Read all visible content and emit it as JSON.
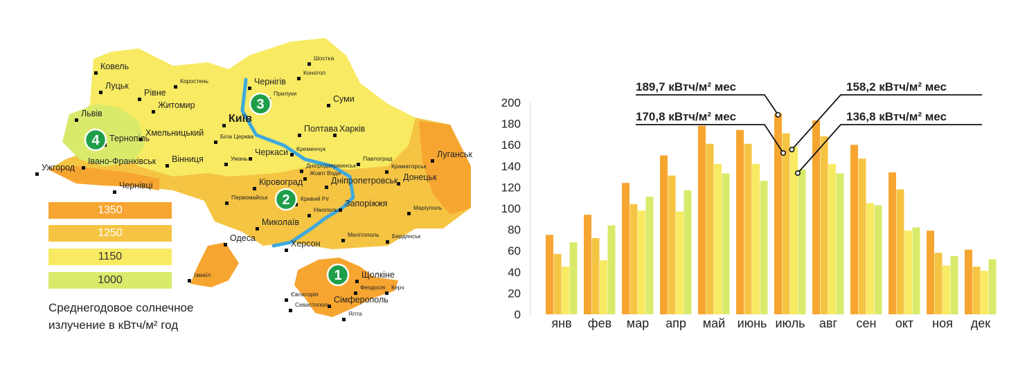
{
  "colors": {
    "c1350": "#f7a531",
    "c1250": "#f5c443",
    "c1150": "#f8ea62",
    "c1000": "#d9ea6b",
    "badge": "#1f9e4a",
    "river": "#3fa9dd"
  },
  "legend": [
    {
      "label": "1350",
      "color": "#f7a531"
    },
    {
      "label": "1250",
      "color": "#f5c443"
    },
    {
      "label": "1150",
      "color": "#f8ea62"
    },
    {
      "label": "1000",
      "color": "#d9ea6b"
    }
  ],
  "caption": {
    "line1": "Среднегодовое солнечное",
    "line2": "излучение в кВтч/м² год"
  },
  "badges": [
    "1",
    "2",
    "3",
    "4"
  ],
  "cities": {
    "major": [
      "Ковель",
      "Луцьк",
      "Рівне",
      "Житомир",
      "Львів",
      "Тернопіль",
      "Хмельницький",
      "Вінниця",
      "Ужгород",
      "Івано-Франківськ",
      "Чернівці",
      "Чернігів",
      "Київ",
      "Суми",
      "Полтава",
      "Харків",
      "Черкаси",
      "Кіровоград",
      "Дніпропетровськ",
      "Запоріжжя",
      "Луганськ",
      "Донецьк",
      "Миколаїв",
      "Одеса",
      "Херсон",
      "Сімферополь",
      "Щолкіне"
    ],
    "minor": [
      "Коростень",
      "Шостка",
      "Конотоп",
      "Прилуки",
      "Біла Церква",
      "Умань",
      "Кременчук",
      "Павлоград",
      "Краматорськ",
      "Дніпродзержинськ",
      "Жовті Води",
      "Первомайськ",
      "Кривий Ріг",
      "Нікополь",
      "Маріуполь",
      "Мелітополь",
      "Бердянськ",
      "Ізмаїл",
      "Феодосія",
      "Керч",
      "Євпаторія",
      "Севастополь",
      "Ялта"
    ]
  },
  "chart_data": {
    "type": "bar",
    "categories": [
      "янв",
      "фев",
      "мар",
      "апр",
      "май",
      "июнь",
      "июль",
      "авг",
      "сен",
      "окт",
      "ноя",
      "дек"
    ],
    "series": [
      {
        "color": "#f7a531",
        "values": [
          75,
          94,
          124,
          150,
          178,
          174,
          189.7,
          183,
          160,
          134,
          79,
          61
        ]
      },
      {
        "color": "#f5c443",
        "values": [
          57,
          72,
          104,
          131,
          161,
          161,
          170.8,
          168,
          147,
          118,
          58,
          45
        ]
      },
      {
        "color": "#f8ea62",
        "values": [
          45,
          51,
          98,
          97,
          142,
          142,
          158.2,
          142,
          105,
          79,
          46,
          41
        ]
      },
      {
        "color": "#d9ea6b",
        "values": [
          68,
          84,
          111,
          117,
          133,
          126,
          136.8,
          133,
          103,
          82,
          55,
          52
        ]
      }
    ],
    "ylim": [
      0,
      200
    ],
    "yticks": [
      0,
      20,
      40,
      60,
      80,
      100,
      120,
      140,
      160,
      180,
      200
    ],
    "annotations": [
      {
        "text": "189,7 кВтч/м² мес",
        "month": "июль",
        "series": 0
      },
      {
        "text": "170,8 кВтч/м² мес",
        "month": "июль",
        "series": 1
      },
      {
        "text": "158,2 кВтч/м² мес",
        "month": "июль",
        "series": 2
      },
      {
        "text": "136,8 кВтч/м² мес",
        "month": "июль",
        "series": 3
      }
    ]
  }
}
